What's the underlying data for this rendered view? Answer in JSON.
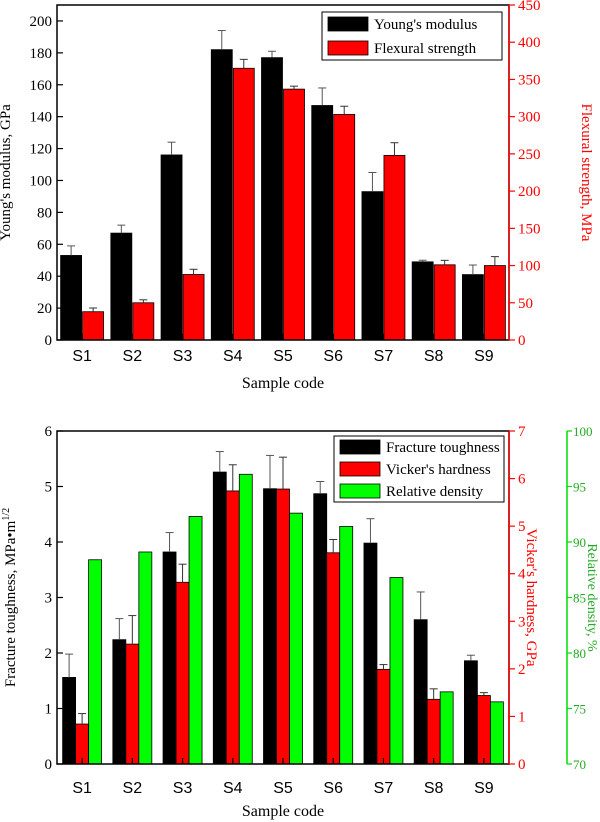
{
  "chart_data": [
    {
      "type": "bar",
      "categories": [
        "S1",
        "S2",
        "S3",
        "S4",
        "S5",
        "S6",
        "S7",
        "S8",
        "S9"
      ],
      "xlabel": "Sample code",
      "axes": {
        "left": {
          "label": "Young's modulus, GPa",
          "range": [
            0,
            210
          ],
          "ticks": [
            0,
            20,
            40,
            60,
            80,
            100,
            120,
            140,
            160,
            180,
            200
          ],
          "color": "#000000"
        },
        "right": {
          "label": "Flexural strength, MPa",
          "range": [
            0,
            450
          ],
          "ticks": [
            0,
            50,
            100,
            150,
            200,
            250,
            300,
            350,
            400,
            450
          ],
          "color": "#ff0000"
        }
      },
      "series": [
        {
          "name": "Young's modulus",
          "axis": "left",
          "color": "#000000",
          "values": [
            53,
            67,
            116,
            182,
            177,
            147,
            93,
            49,
            41
          ],
          "errors": [
            6,
            5,
            8,
            12,
            4,
            11,
            12,
            1,
            6
          ]
        },
        {
          "name": "Flexural strength",
          "axis": "right",
          "color": "#ff0000",
          "values": [
            38,
            50,
            88,
            365,
            337,
            303,
            248,
            101,
            100
          ],
          "errors": [
            5,
            4,
            7,
            12,
            4,
            11,
            17,
            6,
            12
          ]
        }
      ],
      "legend": "top-right"
    },
    {
      "type": "bar",
      "categories": [
        "S1",
        "S2",
        "S3",
        "S4",
        "S5",
        "S6",
        "S7",
        "S8",
        "S9"
      ],
      "xlabel": "Sample code",
      "axes": {
        "left": {
          "label": "Fracture toughness, MPa•m",
          "label_sup": "1/2",
          "range": [
            0,
            6
          ],
          "ticks": [
            0,
            1,
            2,
            3,
            4,
            5,
            6
          ],
          "color": "#000000"
        },
        "right": {
          "label": "Vicker's hardness, GPa",
          "range": [
            0,
            7
          ],
          "ticks": [
            0,
            1,
            2,
            3,
            4,
            5,
            6,
            7
          ],
          "color": "#ff0000"
        },
        "right2": {
          "label": "Relative density, %",
          "range": [
            70,
            100
          ],
          "ticks": [
            70,
            75,
            80,
            85,
            90,
            95,
            100
          ],
          "color": "#00dd00"
        }
      },
      "series": [
        {
          "name": "Fracture toughness",
          "axis": "left",
          "color": "#000000",
          "values": [
            1.56,
            2.24,
            3.82,
            5.26,
            4.96,
            4.87,
            3.98,
            2.6,
            1.86
          ],
          "errors": [
            0.42,
            0.38,
            0.35,
            0.37,
            0.6,
            0.22,
            0.44,
            0.5,
            0.1
          ]
        },
        {
          "name": "Vicker's hardness",
          "axis": "right",
          "color": "#ff0000",
          "values": [
            0.84,
            2.52,
            3.82,
            5.74,
            5.78,
            4.44,
            1.99,
            1.36,
            1.44
          ],
          "errors": [
            0.22,
            0.6,
            0.38,
            0.55,
            0.67,
            0.28,
            0.1,
            0.22,
            0.06
          ]
        },
        {
          "name": "Relative density",
          "axis": "right2",
          "color": "#00ff00",
          "values": [
            88.4,
            89.1,
            92.3,
            96.1,
            92.6,
            91.4,
            86.8,
            76.5,
            75.6
          ],
          "errors": [
            0,
            0,
            0,
            0,
            0,
            0,
            0,
            0,
            0
          ]
        }
      ],
      "legend": "top-right"
    }
  ]
}
